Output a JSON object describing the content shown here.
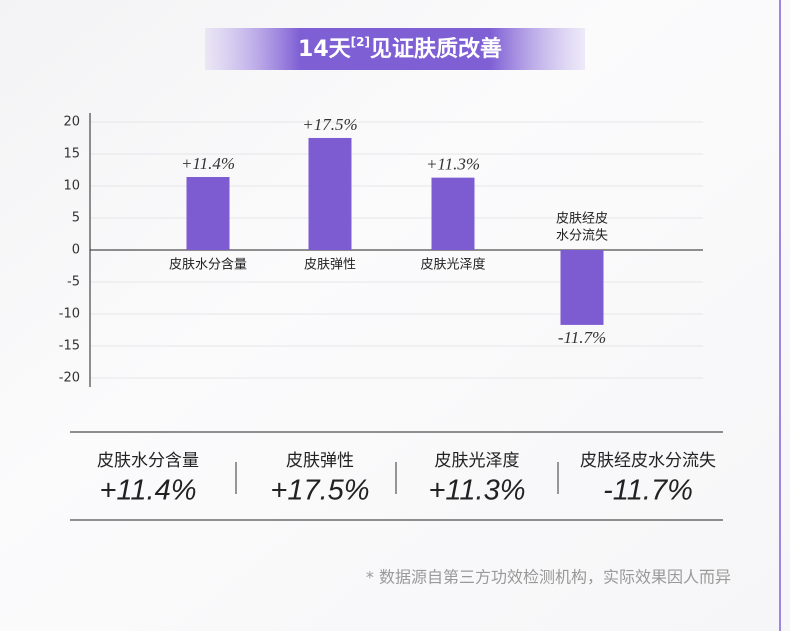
{
  "chart_data": {
    "type": "bar",
    "title": [
      "14天",
      "[2]",
      "见证肤质改善"
    ],
    "categories": [
      "皮肤水分含量",
      "皮肤弹性",
      "皮肤光泽度",
      [
        "皮肤经皮",
        "水分流失"
      ]
    ],
    "values": [
      11.4,
      17.5,
      11.3,
      -11.7
    ],
    "value_labels": [
      "+11.4%",
      "+17.5%",
      "+11.3%",
      "-11.7%"
    ],
    "color": "#7d5bd0",
    "ylim": [
      -21.4,
      21.4
    ],
    "yticks": [
      20,
      15,
      10,
      5,
      0,
      -5,
      -10,
      -15,
      -20
    ],
    "grid": true
  },
  "summary": {
    "labels": [
      "皮肤水分含量",
      "皮肤弹性",
      "皮肤光泽度",
      "皮肤经皮水分流失"
    ],
    "values": [
      "+11.4%",
      "+17.5%",
      "+11.3%",
      "-11.7%"
    ]
  },
  "footnote": "* 数据源自第三方功效检测机构，实际效果因人而异"
}
